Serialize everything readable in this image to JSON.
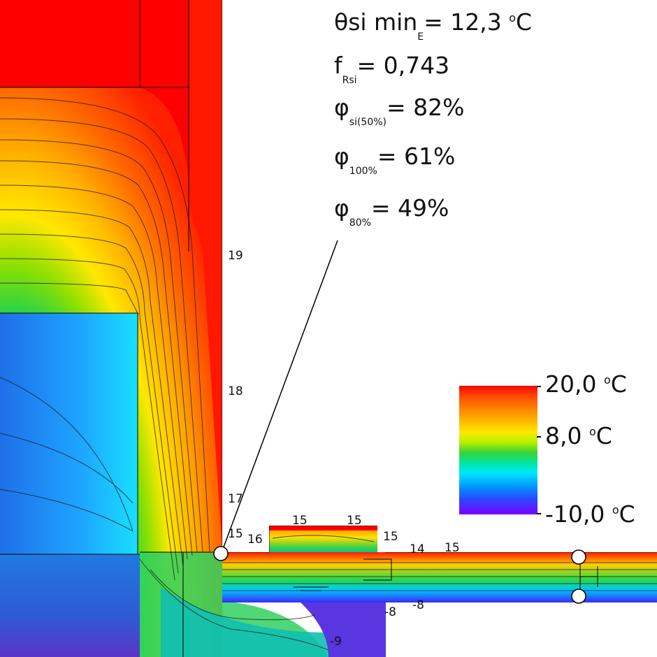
{
  "results": {
    "theta": {
      "main": "θsi min",
      "sub": "E",
      "rest": "= 12,3 ",
      "deg": "o",
      "unit": "C"
    },
    "frsi": {
      "main": "f",
      "sub": "Rsi",
      "rest": "= 0,743"
    },
    "phi_si": {
      "main": "φ",
      "sub": "si(50%)",
      "rest": "= 82%"
    },
    "phi_100": {
      "main": "φ",
      "sub": "100%",
      "rest": "= 61%"
    },
    "phi_80": {
      "main": "φ",
      "sub": "80%",
      "rest": "= 49%"
    }
  },
  "legend": {
    "max": "20,0 ",
    "mid": "8,0 ",
    "min": "-10,0 ",
    "deg": "o",
    "unit": "C"
  },
  "isotherm_labels": {
    "l19": "19",
    "l18": "18",
    "l17": "17",
    "l15a": "15",
    "l16": "16",
    "l15b": "15",
    "l15c": "15",
    "l15d": "15",
    "l14": "14",
    "l15e": "15",
    "m8a": "-8",
    "m8b": "-8",
    "m9": "-9"
  },
  "colors": {
    "hot": "#ff0000",
    "cold": "#3a3aff",
    "text": "#111111"
  }
}
